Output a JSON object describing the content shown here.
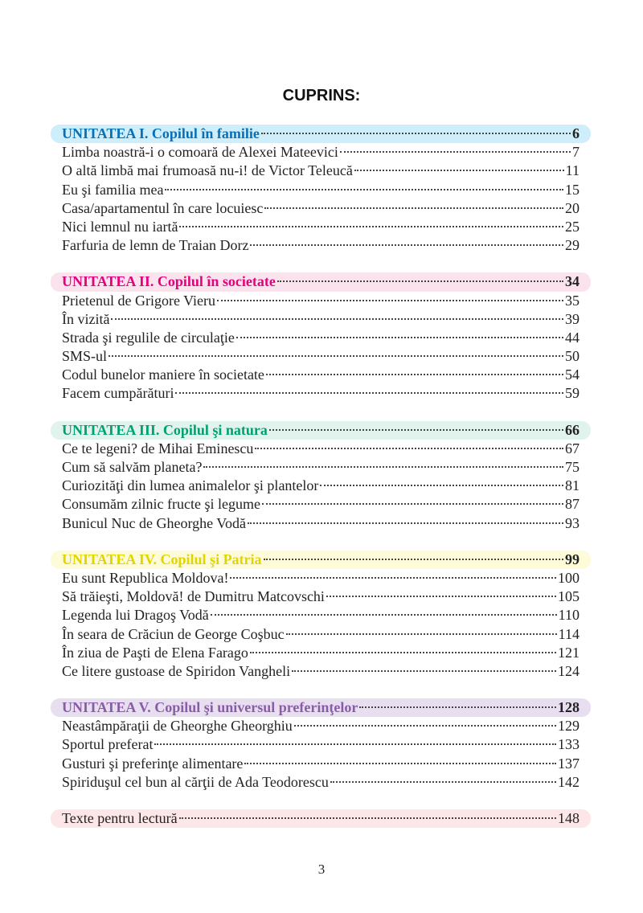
{
  "title": "CUPRINS:",
  "sections": [
    {
      "heading": {
        "label": "UNITATEA I. Copilul în familie",
        "page": "6"
      },
      "color": "#0a6fb5",
      "bg": "#cdeefa",
      "items": [
        {
          "label": "Limba noastră-i o comoară de Alexei Mateevici",
          "page": "7"
        },
        {
          "label": "O altă limbă mai frumoasă nu-i!  de Victor Teleucă",
          "page": "11"
        },
        {
          "label": "Eu şi familia mea",
          "page": "15"
        },
        {
          "label": "Casa/apartamentul în care locuiesc",
          "page": "20"
        },
        {
          "label": "Nici lemnul nu iartă",
          "page": "25"
        },
        {
          "label": "Farfuria de lemn de Traian Dorz",
          "page": "29"
        }
      ]
    },
    {
      "heading": {
        "label": "UNITATEA II. Copilul în societate",
        "page": "34"
      },
      "color": "#e6007e",
      "bg": "#fbe3ee",
      "items": [
        {
          "label": "Prietenul de Grigore Vieru",
          "page": "35"
        },
        {
          "label": "În vizită",
          "page": "39"
        },
        {
          "label": "Strada şi regulile de circulaţie",
          "page": "44"
        },
        {
          "label": "SMS-ul",
          "page": "50"
        },
        {
          "label": "Codul bunelor maniere în societate",
          "page": "54"
        },
        {
          "label": "Facem cumpărături",
          "page": "59"
        }
      ]
    },
    {
      "heading": {
        "label": "UNITATEA III. Copilul şi natura",
        "page": "66"
      },
      "color": "#00a070",
      "bg": "#e0f3ec",
      "items": [
        {
          "label": "Ce te legeni? de Mihai Eminescu",
          "page": "67"
        },
        {
          "label": "Cum să salvăm planeta?",
          "page": "75"
        },
        {
          "label": "Curiozităţi din lumea animalelor şi plantelor",
          "page": "81"
        },
        {
          "label": "Consumăm zilnic fructe şi legume",
          "page": "87"
        },
        {
          "label": "Bunicul Nuc de Gheorghe Vodă",
          "page": "93"
        }
      ]
    },
    {
      "heading": {
        "label": "UNITATEA IV. Copilul şi Patria",
        "page": "99"
      },
      "color": "#e2d400",
      "bg": "#fdfbd8",
      "items": [
        {
          "label": "Eu sunt Republica Moldova!",
          "page": "100"
        },
        {
          "label": "Să trăieşti, Moldovă! de Dumitru Matcovschi",
          "page": "105"
        },
        {
          "label": "Legenda lui Dragoş Vodă",
          "page": "110"
        },
        {
          "label": "În seara de Crăciun de George Coşbuc",
          "page": "114"
        },
        {
          "label": "În ziua de Paşti de Elena Farago",
          "page": "121"
        },
        {
          "label": "Ce litere gustoase de Spiridon Vangheli",
          "page": "124"
        }
      ]
    },
    {
      "heading": {
        "label": "UNITATEA V. Copilul şi universul preferinţelor",
        "page": "128"
      },
      "color": "#8a5ca8",
      "bg": "#e7def0",
      "items": [
        {
          "label": "Neastâmpăraţii de Gheorghe Gheorghiu",
          "page": "129"
        },
        {
          "label": "Sportul preferat",
          "page": "133"
        },
        {
          "label": "Gusturi şi preferinţe alimentare",
          "page": "137"
        },
        {
          "label": "Spiriduşul cel bun al cărţii de Ada Teodorescu",
          "page": "142"
        }
      ]
    }
  ],
  "reading": {
    "label": "Texte pentru lectură",
    "page": "148",
    "bg": "#fde6e8"
  },
  "page_number": "3"
}
